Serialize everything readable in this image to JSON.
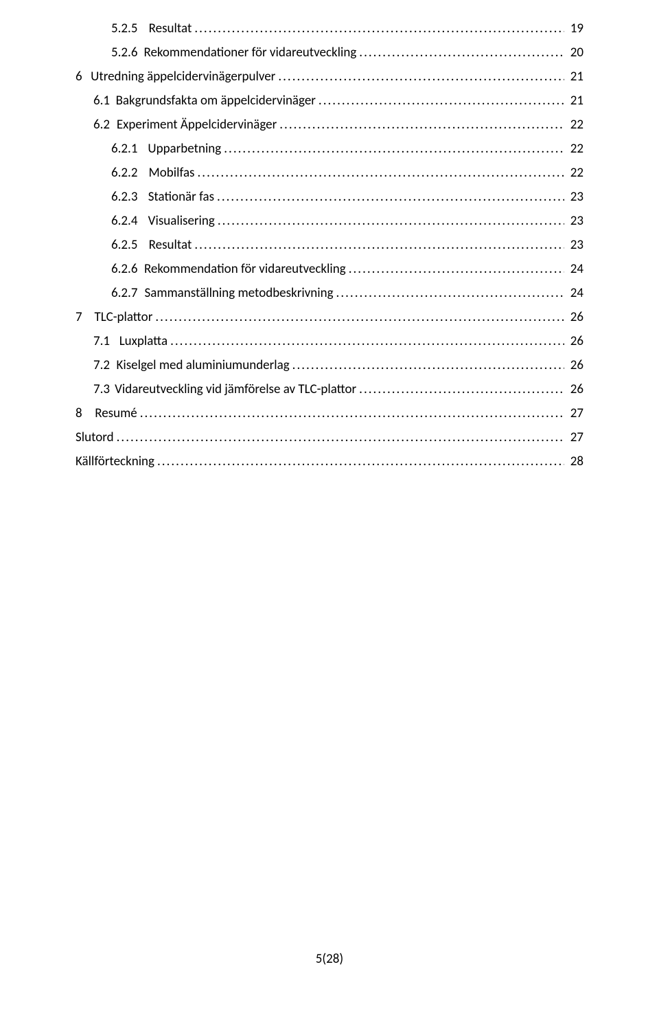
{
  "toc": [
    {
      "level": 3,
      "num": "5.2.5",
      "title": "Resultat",
      "page": "19"
    },
    {
      "level": 3,
      "num": "5.2.6",
      "title": "Rekommendationer för vidareutveckling",
      "page": "20"
    },
    {
      "level": 1,
      "num": "6",
      "title": "Utredning äppelcidervinägerpulver",
      "page": "21"
    },
    {
      "level": 2,
      "num": "6.1",
      "title": "Bakgrundsfakta om äppelcidervinäger",
      "page": "21"
    },
    {
      "level": 2,
      "num": "6.2",
      "title": "Experiment Äppelcidervinäger",
      "page": "22"
    },
    {
      "level": 3,
      "num": "6.2.1",
      "title": "Upparbetning",
      "page": "22"
    },
    {
      "level": 3,
      "num": "6.2.2",
      "title": "Mobilfas",
      "page": "22"
    },
    {
      "level": 3,
      "num": "6.2.3",
      "title": "Stationär fas",
      "page": "23"
    },
    {
      "level": 3,
      "num": "6.2.4",
      "title": "Visualisering",
      "page": "23"
    },
    {
      "level": 3,
      "num": "6.2.5",
      "title": "Resultat",
      "page": "23"
    },
    {
      "level": 3,
      "num": "6.2.6",
      "title": "Rekommendation för vidareutveckling",
      "page": "24"
    },
    {
      "level": 3,
      "num": "6.2.7",
      "title": "Sammanställning metodbeskrivning",
      "page": "24"
    },
    {
      "level": 1,
      "num": "7",
      "title": "TLC-plattor",
      "page": "26"
    },
    {
      "level": 2,
      "num": "7.1",
      "title": "Luxplatta",
      "page": "26"
    },
    {
      "level": 2,
      "num": "7.2",
      "title": "Kiselgel med aluminiumunderlag",
      "page": "26"
    },
    {
      "level": 2,
      "num": "7.3",
      "title": "Vidareutveckling vid jämförelse av TLC-plattor",
      "page": "26"
    },
    {
      "level": 1,
      "num": "8",
      "title": "Resumé",
      "page": "27",
      "noLeader": true
    },
    {
      "level": 1,
      "num": "",
      "title": "Slutord",
      "page": "27",
      "noLeader": true
    },
    {
      "level": 1,
      "num": "",
      "title": "Källförteckning",
      "page": "28",
      "noLeader": true
    }
  ],
  "footer": "5(28)"
}
